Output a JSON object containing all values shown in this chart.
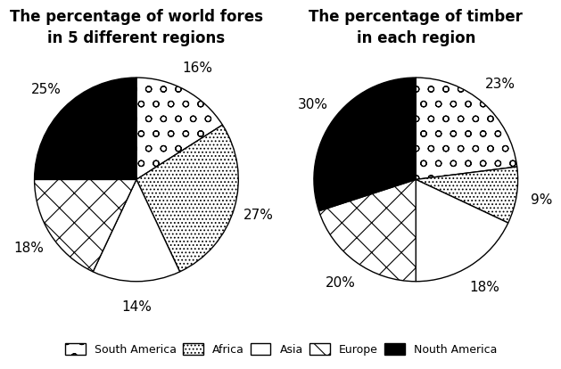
{
  "chart1_title": "The percentage of world fores\nin 5 different regions",
  "chart2_title": "The percentage of timber\nin each region",
  "regions": [
    "South America",
    "Africa",
    "Asia",
    "Europe",
    "Nouth America"
  ],
  "chart1_values": [
    16,
    27,
    14,
    18,
    25
  ],
  "chart2_values": [
    23,
    9,
    18,
    20,
    30
  ],
  "chart1_labels": [
    "16%",
    "27%",
    "14%",
    "18%",
    "25%"
  ],
  "chart2_labels": [
    "23%",
    "9%",
    "18%",
    "20%",
    "30%"
  ],
  "face_colors": [
    "white",
    "white",
    "white",
    "white",
    "black"
  ],
  "title_fontsize": 12,
  "label_fontsize": 11,
  "legend_fontsize": 9
}
